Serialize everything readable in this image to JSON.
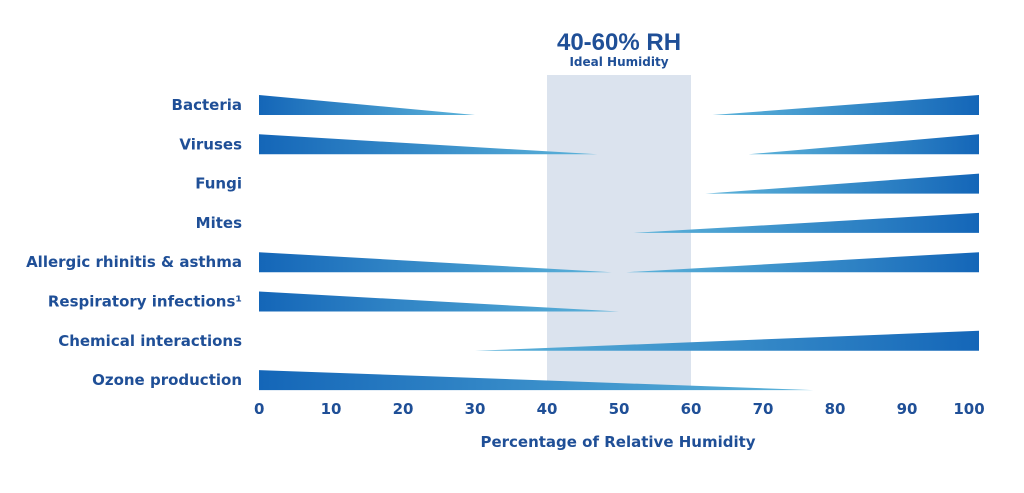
{
  "chart_data": {
    "type": "bar",
    "subtype": "tapered range bars",
    "xlabel": "Percentage of Relative Humidity",
    "xlim": [
      0,
      100
    ],
    "xticks": [
      "0",
      "10",
      "20",
      "30",
      "40",
      "50",
      "60",
      "70",
      "80",
      "90",
      "100"
    ],
    "grid": false,
    "highlight": {
      "range": [
        40,
        60
      ],
      "title": "40-60% RH",
      "subtitle": "Ideal Humidity",
      "color": "#dbe3ee"
    },
    "colors": {
      "dark": "#1466b8",
      "light": "#5db4da",
      "text": "#1f4f97"
    },
    "categories": [
      "Bacteria",
      "Viruses",
      "Fungi",
      "Mites",
      "Allergic rhinitis & asthma",
      "Respiratory infections¹",
      "Chemical interactions",
      "Ozone production"
    ],
    "segments": [
      [
        {
          "from": 0,
          "to": 30
        },
        {
          "from": 63,
          "to": 100
        }
      ],
      [
        {
          "from": 0,
          "to": 47
        },
        {
          "from": 68,
          "to": 100
        }
      ],
      [
        {
          "from": 62,
          "to": 100
        }
      ],
      [
        {
          "from": 52,
          "to": 100
        }
      ],
      [
        {
          "from": 0,
          "to": 49
        },
        {
          "from": 51,
          "to": 100
        }
      ],
      [
        {
          "from": 0,
          "to": 50
        }
      ],
      [
        {
          "from": 30,
          "to": 100
        }
      ],
      [
        {
          "from": 0,
          "to": 77
        }
      ]
    ]
  }
}
